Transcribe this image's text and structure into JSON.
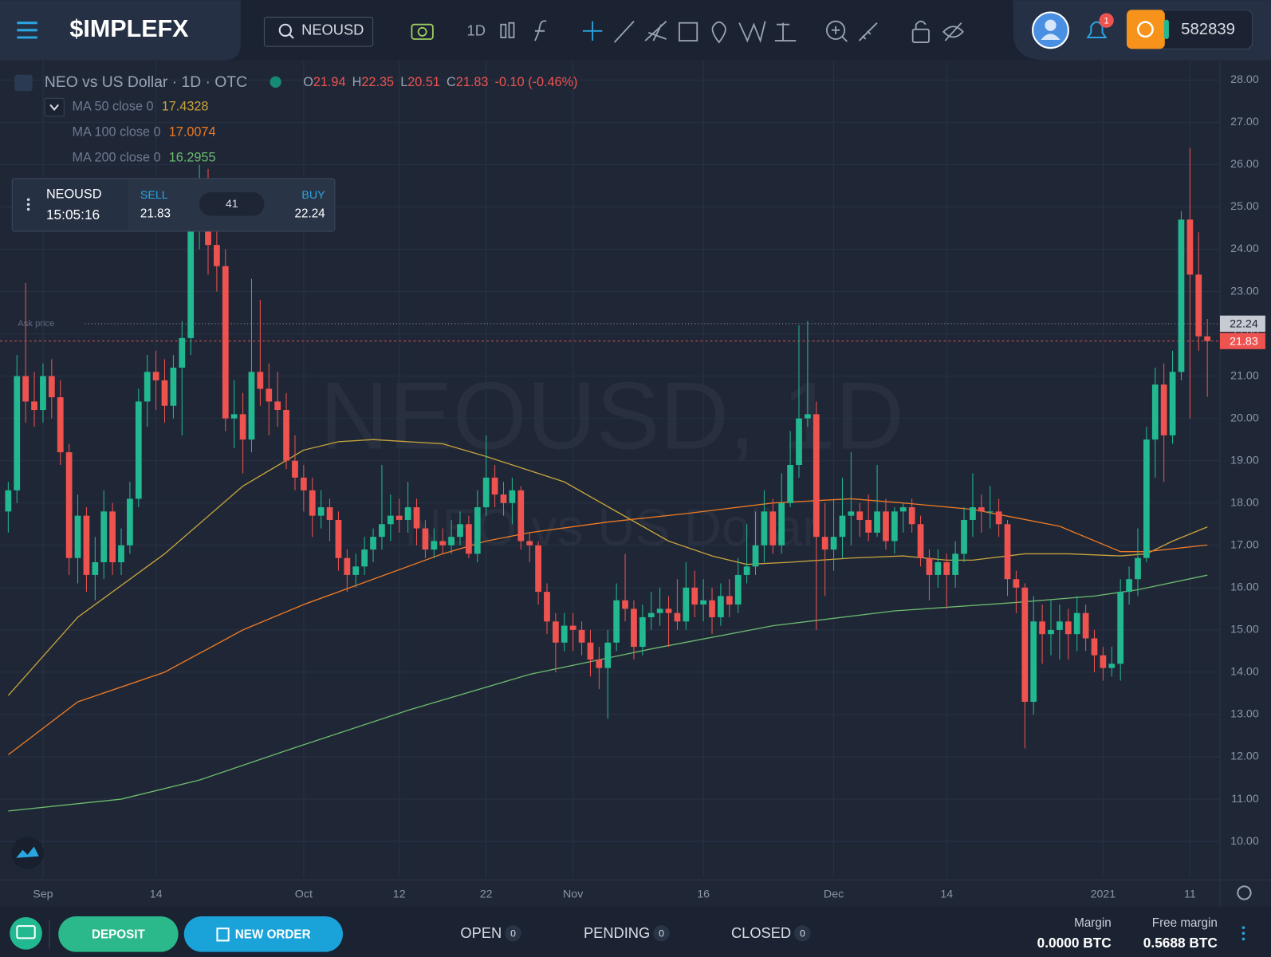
{
  "header": {
    "logo": "$IMPLEFX",
    "search": "NEOUSD",
    "interval": "1D",
    "notifications": "1",
    "balance": "582839"
  },
  "legend": {
    "title": "NEO vs US Dollar · 1D · OTC",
    "ohlc": [
      {
        "label": "O",
        "value": 21.94
      },
      {
        "label": "H",
        "value": 22.35
      },
      {
        "label": "L",
        "value": 20.51
      },
      {
        "label": "C",
        "value": 21.83
      }
    ],
    "change": "-0.10 (-0.46%)"
  },
  "ticket": {
    "symbol": "NEOUSD",
    "time": "15:05:16",
    "sell_label": "SELL",
    "sell": "21.83",
    "spread": "41",
    "buy_label": "BUY",
    "buy": "22.24"
  },
  "chart_data": {
    "type": "candlestick",
    "watermark": [
      "NEOUSD, 1D",
      "NEO vs US Dollar"
    ],
    "x": [
      -4,
      -3,
      -2,
      -1,
      0,
      1,
      2,
      3,
      4,
      5,
      6,
      7,
      8,
      9,
      10,
      11,
      12,
      13,
      14,
      15,
      16,
      17,
      18,
      19,
      20,
      21,
      22,
      23,
      24,
      25,
      26,
      27,
      28,
      29,
      30,
      31,
      32,
      33,
      34,
      35,
      36,
      37,
      38,
      39,
      40,
      41,
      42,
      43,
      44,
      45,
      46,
      47,
      48,
      49,
      50,
      51,
      52,
      53,
      54,
      55,
      56,
      57,
      58,
      59,
      60,
      61,
      62,
      63,
      64,
      65,
      66,
      67,
      68,
      69,
      70,
      71,
      72,
      73,
      74,
      75,
      76,
      77,
      78,
      79,
      80,
      81,
      82,
      83,
      84,
      85,
      86,
      87,
      88,
      89,
      90,
      91,
      92,
      93,
      94,
      95,
      96,
      97,
      98,
      99,
      100,
      101,
      102,
      103,
      104,
      105,
      106,
      107,
      108,
      109,
      110,
      111,
      112,
      113,
      114,
      115,
      116,
      117,
      118,
      119,
      120,
      121,
      122,
      123,
      124,
      125,
      126,
      127,
      128,
      129,
      130,
      131,
      132,
      133,
      134
    ],
    "candles": [
      [
        17.8,
        18.5,
        17.3,
        18.3
      ],
      [
        18.3,
        21.5,
        18.0,
        21.0
      ],
      [
        21.0,
        23.2,
        19.9,
        20.4
      ],
      [
        20.4,
        21.1,
        19.8,
        20.2
      ],
      [
        20.2,
        21.3,
        19.9,
        21.0
      ],
      [
        21.0,
        21.4,
        20.0,
        20.5
      ],
      [
        20.5,
        20.9,
        18.9,
        19.2
      ],
      [
        19.2,
        19.4,
        16.3,
        16.7
      ],
      [
        16.7,
        18.2,
        16.1,
        17.7
      ],
      [
        17.7,
        17.9,
        15.9,
        16.3
      ],
      [
        16.3,
        17.2,
        15.7,
        16.6
      ],
      [
        16.6,
        18.3,
        16.2,
        17.8
      ],
      [
        17.8,
        18.0,
        16.3,
        16.6
      ],
      [
        16.6,
        17.4,
        16.3,
        17.0
      ],
      [
        17.0,
        18.5,
        16.8,
        18.1
      ],
      [
        18.1,
        20.7,
        17.9,
        20.4
      ],
      [
        20.4,
        21.5,
        19.8,
        21.1
      ],
      [
        21.1,
        21.6,
        20.2,
        20.9
      ],
      [
        20.9,
        21.4,
        19.9,
        20.3
      ],
      [
        20.3,
        21.5,
        20.0,
        21.2
      ],
      [
        21.2,
        22.3,
        19.6,
        21.9
      ],
      [
        21.9,
        24.8,
        21.5,
        24.5
      ],
      [
        24.5,
        26.0,
        24.0,
        24.9
      ],
      [
        24.9,
        25.9,
        23.4,
        24.1
      ],
      [
        24.1,
        24.7,
        23.0,
        23.6
      ],
      [
        23.6,
        24.0,
        19.7,
        20.0
      ],
      [
        20.0,
        20.9,
        19.3,
        20.1
      ],
      [
        20.1,
        20.6,
        18.7,
        19.5
      ],
      [
        19.5,
        23.3,
        19.2,
        21.1
      ],
      [
        21.1,
        22.8,
        20.3,
        20.7
      ],
      [
        20.7,
        21.3,
        19.6,
        20.4
      ],
      [
        20.4,
        21.1,
        19.8,
        20.2
      ],
      [
        20.2,
        20.6,
        18.8,
        19.0
      ],
      [
        19.0,
        19.6,
        18.3,
        18.6
      ],
      [
        18.6,
        18.9,
        17.8,
        18.3
      ],
      [
        18.3,
        18.6,
        17.2,
        17.7
      ],
      [
        17.7,
        18.3,
        17.4,
        17.9
      ],
      [
        17.9,
        18.1,
        17.1,
        17.6
      ],
      [
        17.6,
        17.8,
        16.4,
        16.7
      ],
      [
        16.7,
        16.9,
        15.9,
        16.3
      ],
      [
        16.3,
        16.8,
        16.0,
        16.5
      ],
      [
        16.5,
        17.2,
        16.3,
        16.9
      ],
      [
        16.9,
        17.4,
        16.6,
        17.2
      ],
      [
        17.2,
        18.9,
        16.9,
        17.5
      ],
      [
        17.5,
        18.2,
        17.1,
        17.7
      ],
      [
        17.7,
        18.1,
        17.3,
        17.6
      ],
      [
        17.6,
        18.5,
        17.3,
        17.9
      ],
      [
        17.9,
        18.1,
        17.0,
        17.4
      ],
      [
        17.4,
        17.6,
        16.7,
        16.9
      ],
      [
        16.9,
        17.4,
        16.7,
        17.1
      ],
      [
        17.1,
        17.4,
        16.8,
        17.0
      ],
      [
        17.0,
        17.6,
        16.8,
        17.2
      ],
      [
        17.2,
        17.8,
        17.0,
        17.5
      ],
      [
        17.5,
        17.7,
        16.7,
        16.8
      ],
      [
        16.8,
        18.3,
        16.6,
        17.9
      ],
      [
        17.9,
        19.6,
        17.7,
        18.6
      ],
      [
        18.6,
        18.9,
        17.9,
        18.2
      ],
      [
        18.2,
        18.5,
        17.7,
        18.0
      ],
      [
        18.0,
        18.6,
        17.5,
        18.3
      ],
      [
        18.3,
        18.4,
        16.9,
        17.1
      ],
      [
        17.1,
        17.3,
        16.6,
        17.0
      ],
      [
        17.0,
        17.1,
        15.6,
        15.9
      ],
      [
        15.9,
        16.1,
        14.9,
        15.2
      ],
      [
        15.2,
        15.4,
        14.0,
        14.7
      ],
      [
        14.7,
        15.4,
        14.5,
        15.1
      ],
      [
        15.1,
        15.4,
        14.5,
        15.0
      ],
      [
        15.0,
        15.2,
        14.4,
        14.7
      ],
      [
        14.7,
        15.0,
        13.9,
        14.3
      ],
      [
        14.3,
        14.6,
        13.6,
        14.1
      ],
      [
        14.1,
        15.0,
        12.9,
        14.7
      ],
      [
        14.7,
        16.1,
        14.5,
        15.7
      ],
      [
        15.7,
        16.8,
        15.2,
        15.5
      ],
      [
        15.5,
        15.7,
        14.3,
        14.6
      ],
      [
        14.6,
        15.6,
        14.4,
        15.3
      ],
      [
        15.3,
        15.9,
        15.0,
        15.4
      ],
      [
        15.4,
        16.0,
        15.1,
        15.5
      ],
      [
        15.5,
        15.8,
        14.6,
        15.4
      ],
      [
        15.4,
        16.2,
        15.0,
        15.2
      ],
      [
        15.2,
        16.6,
        15.0,
        16.0
      ],
      [
        16.0,
        16.4,
        15.3,
        15.6
      ],
      [
        15.6,
        16.2,
        15.2,
        15.7
      ],
      [
        15.7,
        16.0,
        14.9,
        15.3
      ],
      [
        15.3,
        16.1,
        15.1,
        15.8
      ],
      [
        15.8,
        16.2,
        15.3,
        15.6
      ],
      [
        15.6,
        16.7,
        15.4,
        16.3
      ],
      [
        16.3,
        17.5,
        16.1,
        16.5
      ],
      [
        16.5,
        17.8,
        16.3,
        17.0
      ],
      [
        17.0,
        18.3,
        16.6,
        17.8
      ],
      [
        17.8,
        18.1,
        16.8,
        17.0
      ],
      [
        17.0,
        18.7,
        16.8,
        18.0
      ],
      [
        18.0,
        19.7,
        17.9,
        18.9
      ],
      [
        18.9,
        22.2,
        18.6,
        20.0
      ],
      [
        20.0,
        22.3,
        19.8,
        20.1
      ],
      [
        20.1,
        20.4,
        15.0,
        17.2
      ],
      [
        17.2,
        18.0,
        15.8,
        16.9
      ],
      [
        16.9,
        18.1,
        16.4,
        17.2
      ],
      [
        17.2,
        18.6,
        16.7,
        17.7
      ],
      [
        17.7,
        19.2,
        17.0,
        17.8
      ],
      [
        17.8,
        18.0,
        17.2,
        17.6
      ],
      [
        17.6,
        18.2,
        17.1,
        17.3
      ],
      [
        17.3,
        18.9,
        17.2,
        17.8
      ],
      [
        17.8,
        18.1,
        16.9,
        17.1
      ],
      [
        17.1,
        17.9,
        16.8,
        17.8
      ],
      [
        17.8,
        18.0,
        17.3,
        17.9
      ],
      [
        17.9,
        18.1,
        17.3,
        17.5
      ],
      [
        17.5,
        17.7,
        16.5,
        16.7
      ],
      [
        16.7,
        16.9,
        15.7,
        16.3
      ],
      [
        16.3,
        16.9,
        16.0,
        16.6
      ],
      [
        16.6,
        16.8,
        15.5,
        16.3
      ],
      [
        16.3,
        17.1,
        16.0,
        16.8
      ],
      [
        16.8,
        17.9,
        16.6,
        17.6
      ],
      [
        17.6,
        18.7,
        17.2,
        17.9
      ],
      [
        17.9,
        18.2,
        17.3,
        17.8
      ],
      [
        17.8,
        18.4,
        17.4,
        17.8
      ],
      [
        17.8,
        18.1,
        17.2,
        17.5
      ],
      [
        17.5,
        17.6,
        15.8,
        16.2
      ],
      [
        16.2,
        16.4,
        15.4,
        16.0
      ],
      [
        16.0,
        16.1,
        12.2,
        13.3
      ],
      [
        13.3,
        15.8,
        13.0,
        15.2
      ],
      [
        15.2,
        15.6,
        14.2,
        14.9
      ],
      [
        14.9,
        15.7,
        14.4,
        15.0
      ],
      [
        15.0,
        15.6,
        14.3,
        15.2
      ],
      [
        15.2,
        15.5,
        14.3,
        14.9
      ],
      [
        14.9,
        15.8,
        14.5,
        15.4
      ],
      [
        15.4,
        15.6,
        14.5,
        14.8
      ],
      [
        14.8,
        15.0,
        14.0,
        14.4
      ],
      [
        14.4,
        14.6,
        13.8,
        14.1
      ],
      [
        14.1,
        14.6,
        13.9,
        14.2
      ],
      [
        14.2,
        16.2,
        13.8,
        15.9
      ],
      [
        15.9,
        16.5,
        15.6,
        16.2
      ],
      [
        16.2,
        17.4,
        15.8,
        16.7
      ],
      [
        16.7,
        19.8,
        16.6,
        19.5
      ],
      [
        19.5,
        21.2,
        18.6,
        20.8
      ],
      [
        20.8,
        21.3,
        18.5,
        19.6
      ],
      [
        19.6,
        21.6,
        19.4,
        21.1
      ],
      [
        21.1,
        24.9,
        20.9,
        24.7
      ],
      [
        24.7,
        26.4,
        20.0,
        23.4
      ],
      [
        23.4,
        24.4,
        21.6,
        21.94
      ],
      [
        21.94,
        22.35,
        20.51,
        21.83
      ]
    ],
    "up_color": "#22b991",
    "down_color": "#ef5350",
    "series": [
      {
        "name": "MA 50 close 0",
        "color": "#c9a43a",
        "x": [
          -4,
          4,
          14,
          23,
          30,
          34,
          38,
          46,
          51,
          60,
          66,
          72,
          77,
          81,
          86,
          93,
          99,
          104,
          107,
          113,
          118,
          124,
          127,
          130,
          134
        ],
        "values": [
          13.45,
          15.3,
          16.8,
          18.4,
          19.25,
          19.45,
          19.5,
          19.4,
          19.1,
          18.5,
          17.8,
          17.1,
          16.75,
          16.55,
          16.6,
          16.7,
          16.75,
          16.65,
          16.65,
          16.8,
          16.8,
          16.75,
          16.8,
          17.1,
          17.4328
        ]
      },
      {
        "name": "MA 100 close 0",
        "color": "#f07a22",
        "x": [
          -4,
          4,
          14,
          23,
          30,
          38,
          46,
          51,
          56,
          65,
          74,
          84,
          93,
          99,
          107,
          112,
          117,
          124,
          127,
          134
        ],
        "values": [
          12.05,
          13.3,
          14.0,
          15.0,
          15.6,
          16.2,
          16.8,
          17.1,
          17.3,
          17.55,
          17.75,
          18.0,
          18.1,
          18.0,
          17.85,
          17.65,
          17.45,
          16.85,
          16.85,
          17.0074
        ]
      },
      {
        "name": "MA 200 close 0",
        "color": "#6dbb6d",
        "x": [
          -4,
          9,
          18,
          28,
          42,
          56,
          70,
          84,
          98,
          112,
          121,
          126,
          134
        ],
        "values": [
          10.72,
          11.0,
          11.45,
          12.15,
          13.1,
          13.95,
          14.55,
          15.1,
          15.45,
          15.65,
          15.8,
          15.95,
          16.2955
        ]
      }
    ],
    "price_lines": [
      {
        "name": "Ask price",
        "value": 22.24,
        "color": "#c5cad3"
      },
      {
        "value": 21.83,
        "color": "#ef5350"
      }
    ],
    "xlim": [
      -4.95,
      135.45
    ],
    "xticks": [
      {
        "value": 0,
        "label": "Sep"
      },
      {
        "value": 13,
        "label": "14"
      },
      {
        "value": 30,
        "label": "Oct"
      },
      {
        "value": 41,
        "label": "12"
      },
      {
        "value": 51,
        "label": "22"
      },
      {
        "value": 61,
        "label": "Nov"
      },
      {
        "value": 76,
        "label": "16"
      },
      {
        "value": 91,
        "label": "Dec"
      },
      {
        "value": 104,
        "label": "14"
      },
      {
        "value": 122,
        "label": "2021"
      },
      {
        "value": 132,
        "label": "11"
      }
    ],
    "ylim": [
      9.15,
      28.45
    ],
    "yticks": [
      {
        "value": 10,
        "label": "10.00"
      },
      {
        "value": 11,
        "label": "11.00"
      },
      {
        "value": 12,
        "label": "12.00"
      },
      {
        "value": 13,
        "label": "13.00"
      },
      {
        "value": 14,
        "label": "14.00"
      },
      {
        "value": 15,
        "label": "15.00"
      },
      {
        "value": 16,
        "label": "16.00"
      },
      {
        "value": 17,
        "label": "17.00"
      },
      {
        "value": 18,
        "label": "18.00"
      },
      {
        "value": 19,
        "label": "19.00"
      },
      {
        "value": 20,
        "label": "20.00"
      },
      {
        "value": 21,
        "label": "21.00"
      },
      {
        "value": 22,
        "label": "22.00"
      },
      {
        "value": 23,
        "label": "23.00"
      },
      {
        "value": 24,
        "label": "24.00"
      },
      {
        "value": 25,
        "label": "25.00"
      },
      {
        "value": 26,
        "label": "26.00"
      },
      {
        "value": 27,
        "label": "27.00"
      },
      {
        "value": 28,
        "label": "28.00"
      }
    ],
    "grid": true
  },
  "footer": {
    "deposit": "DEPOSIT",
    "new_order": "NEW ORDER",
    "tabs": [
      {
        "label": "OPEN",
        "count": "0"
      },
      {
        "label": "PENDING",
        "count": "0"
      },
      {
        "label": "CLOSED",
        "count": "0"
      }
    ],
    "margin": {
      "label": "Margin",
      "value": "0.0000 BTC"
    },
    "free_margin": {
      "label": "Free margin",
      "value": "0.5688 BTC"
    }
  }
}
